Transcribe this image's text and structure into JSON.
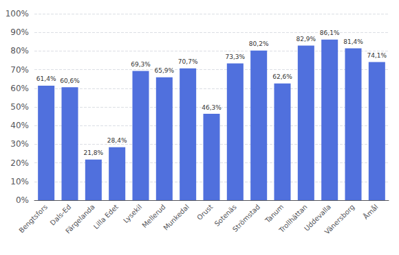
{
  "chart_data": {
    "type": "bar",
    "categories": [
      "Bengtsfors",
      "Dals-Ed",
      "Färgelanda",
      "Lilla Edet",
      "Lysekil",
      "Mellerud",
      "Munkedal",
      "Orust",
      "Sotenäs",
      "Strömstad",
      "Tanum",
      "Trollhättan",
      "Uddevalla",
      "Vänersborg",
      "Åmål"
    ],
    "values": [
      61.4,
      60.6,
      21.8,
      28.4,
      69.3,
      65.9,
      70.7,
      46.3,
      73.3,
      80.2,
      62.6,
      82.9,
      86.1,
      81.4,
      74.1
    ],
    "value_labels": [
      "61,4%",
      "60,6%",
      "21,8%",
      "28,4%",
      "69,3%",
      "65,9%",
      "70,7%",
      "46,3%",
      "73,3%",
      "80,2%",
      "62,6%",
      "82,9%",
      "86,1%",
      "81,4%",
      "74,1%"
    ],
    "data_labels": true,
    "ylim": [
      0,
      100
    ],
    "yticks": [
      {
        "value": 0,
        "label": "0%"
      },
      {
        "value": 10,
        "label": "10%"
      },
      {
        "value": 20,
        "label": "20%"
      },
      {
        "value": 30,
        "label": "30%"
      },
      {
        "value": 40,
        "label": "40%"
      },
      {
        "value": 50,
        "label": "50%"
      },
      {
        "value": 60,
        "label": "60%"
      },
      {
        "value": 70,
        "label": "70%"
      },
      {
        "value": 80,
        "label": "80%"
      },
      {
        "value": 90,
        "label": "90%"
      },
      {
        "value": 100,
        "label": "100%"
      }
    ],
    "grid": true
  }
}
